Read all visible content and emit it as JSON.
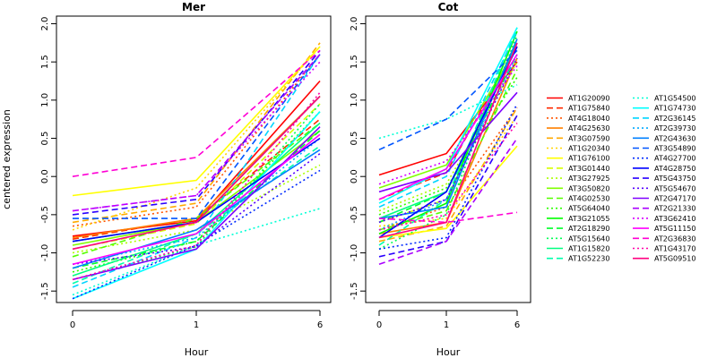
{
  "chart_data": {
    "type": "line",
    "ylabel": "centered expression",
    "xlabel": "Hour",
    "x_ticks": [
      "0",
      "1",
      "6"
    ],
    "y_ticks": [
      "-1.5",
      "-1.0",
      "-0.5",
      "0.0",
      "0.5",
      "1.0",
      "1.5",
      "2.0"
    ],
    "ylim": [
      -1.65,
      2.1
    ],
    "panels": [
      {
        "title": "Mer",
        "series": [
          {
            "name": "AT1G20090",
            "values": [
              -0.78,
              -0.58,
              1.25
            ]
          },
          {
            "name": "AT1G75840",
            "values": [
              -0.82,
              -0.55,
              0.75
            ]
          },
          {
            "name": "AT4G18040",
            "values": [
              -0.65,
              -0.4,
              1.6
            ]
          },
          {
            "name": "AT4G25630",
            "values": [
              -0.8,
              -0.55,
              1.05
            ]
          },
          {
            "name": "AT3G07590",
            "values": [
              -0.6,
              -0.35,
              1.75
            ]
          },
          {
            "name": "AT1G20340",
            "values": [
              -0.7,
              -0.15,
              1.7
            ]
          },
          {
            "name": "AT1G76100",
            "values": [
              -0.25,
              -0.05,
              1.7
            ]
          },
          {
            "name": "AT3G01440",
            "values": [
              -0.95,
              -0.62,
              0.95
            ]
          },
          {
            "name": "AT3G27925",
            "values": [
              -1.0,
              -0.7,
              0.15
            ]
          },
          {
            "name": "AT3G50820",
            "values": [
              -0.9,
              -0.6,
              0.6
            ]
          },
          {
            "name": "AT4G02530",
            "values": [
              -1.05,
              -0.55,
              0.7
            ]
          },
          {
            "name": "AT5G64040",
            "values": [
              -1.25,
              -0.85,
              0.85
            ]
          },
          {
            "name": "AT3G21055",
            "values": [
              -0.85,
              -0.6,
              1.05
            ]
          },
          {
            "name": "AT2G18290",
            "values": [
              -1.2,
              -0.85,
              0.6
            ]
          },
          {
            "name": "AT5G15640",
            "values": [
              -1.35,
              -0.92,
              0.95
            ]
          },
          {
            "name": "AT1G15820",
            "values": [
              -1.3,
              -0.75,
              0.7
            ]
          },
          {
            "name": "AT1G52230",
            "values": [
              -1.4,
              -0.75,
              0.4
            ]
          },
          {
            "name": "AT1G54500",
            "values": [
              -1.55,
              -0.9,
              -0.42
            ]
          },
          {
            "name": "AT1G74730",
            "values": [
              -1.6,
              -0.95,
              0.85
            ]
          },
          {
            "name": "AT2G36145",
            "values": [
              -1.45,
              -0.8,
              1.6
            ]
          },
          {
            "name": "AT2G39730",
            "values": [
              -1.15,
              -0.8,
              0.5
            ]
          },
          {
            "name": "AT2G43630",
            "values": [
              -1.2,
              -0.7,
              0.35
            ]
          },
          {
            "name": "AT3G54890",
            "values": [
              -0.55,
              -0.55,
              1.6
            ]
          },
          {
            "name": "AT4G27700",
            "values": [
              -1.6,
              -0.9,
              0.08
            ]
          },
          {
            "name": "AT4G28750",
            "values": [
              -0.85,
              -0.6,
              0.5
            ]
          },
          {
            "name": "AT5G43750",
            "values": [
              -0.5,
              -0.3,
              1.65
            ]
          },
          {
            "name": "AT5G54670",
            "values": [
              -1.15,
              -0.92,
              0.3
            ]
          },
          {
            "name": "AT2G47170",
            "values": [
              -1.35,
              -0.95,
              0.65
            ]
          },
          {
            "name": "AT2G21330",
            "values": [
              -0.45,
              -0.25,
              1.6
            ]
          },
          {
            "name": "AT3G62410",
            "values": [
              -0.45,
              -0.25,
              1.5
            ]
          },
          {
            "name": "AT5G11150",
            "values": [
              -1.15,
              -0.75,
              0.55
            ]
          },
          {
            "name": "AT2G36830",
            "values": [
              0.0,
              0.25,
              1.65
            ]
          },
          {
            "name": "AT1G43170",
            "values": [
              -1.35,
              -0.9,
              1.1
            ]
          },
          {
            "name": "AT5G09510",
            "values": [
              -0.95,
              -0.6,
              1.05
            ]
          }
        ]
      },
      {
        "title": "Cot",
        "series": [
          {
            "name": "AT1G20090",
            "values": [
              0.02,
              0.3,
              1.5
            ]
          },
          {
            "name": "AT1G75840",
            "values": [
              -0.3,
              0.05,
              1.7
            ]
          },
          {
            "name": "AT4G18040",
            "values": [
              -0.7,
              -0.4,
              0.9
            ]
          },
          {
            "name": "AT4G25630",
            "values": [
              -0.75,
              -0.6,
              1.55
            ]
          },
          {
            "name": "AT3G07590",
            "values": [
              -0.85,
              -0.65,
              0.9
            ]
          },
          {
            "name": "AT1G20340",
            "values": [
              -0.65,
              -0.55,
              0.8
            ]
          },
          {
            "name": "AT1G76100",
            "values": [
              -0.8,
              -0.68,
              0.4
            ]
          },
          {
            "name": "AT3G01440",
            "values": [
              -0.6,
              -0.3,
              1.8
            ]
          },
          {
            "name": "AT3G27925",
            "values": [
              -0.45,
              -0.1,
              1.5
            ]
          },
          {
            "name": "AT3G50820",
            "values": [
              -0.15,
              0.15,
              1.7
            ]
          },
          {
            "name": "AT4G02530",
            "values": [
              -0.7,
              -0.45,
              1.4
            ]
          },
          {
            "name": "AT5G64040",
            "values": [
              -0.5,
              -0.15,
              1.3
            ]
          },
          {
            "name": "AT3G21055",
            "values": [
              -0.75,
              -0.35,
              1.9
            ]
          },
          {
            "name": "AT2G18290",
            "values": [
              -0.6,
              -0.2,
              1.6
            ]
          },
          {
            "name": "AT5G15640",
            "values": [
              -0.95,
              -0.5,
              1.85
            ]
          },
          {
            "name": "AT1G15820",
            "values": [
              -0.55,
              -0.2,
              1.75
            ]
          },
          {
            "name": "AT1G52230",
            "values": [
              -0.9,
              -0.3,
              1.95
            ]
          },
          {
            "name": "AT1G54500",
            "values": [
              0.5,
              0.75,
              1.2
            ]
          },
          {
            "name": "AT1G74730",
            "values": [
              -0.35,
              0.1,
              1.95
            ]
          },
          {
            "name": "AT2G36145",
            "values": [
              -0.4,
              0.0,
              1.9
            ]
          },
          {
            "name": "AT2G39730",
            "values": [
              -0.7,
              -0.3,
              1.6
            ]
          },
          {
            "name": "AT2G43630",
            "values": [
              -0.55,
              -0.4,
              1.8
            ]
          },
          {
            "name": "AT3G54890",
            "values": [
              0.35,
              0.75,
              1.65
            ]
          },
          {
            "name": "AT4G27700",
            "values": [
              -0.95,
              -0.8,
              0.95
            ]
          },
          {
            "name": "AT4G28750",
            "values": [
              -0.8,
              -0.2,
              1.7
            ]
          },
          {
            "name": "AT5G43750",
            "values": [
              -1.05,
              -0.85,
              0.8
            ]
          },
          {
            "name": "AT5G54670",
            "values": [
              -0.6,
              -0.3,
              1.55
            ]
          },
          {
            "name": "AT2G47170",
            "values": [
              -0.2,
              0.05,
              1.1
            ]
          },
          {
            "name": "AT2G21330",
            "values": [
              -1.15,
              -0.85,
              0.5
            ]
          },
          {
            "name": "AT3G62410",
            "values": [
              -0.1,
              0.2,
              1.45
            ]
          },
          {
            "name": "AT5G11150",
            "values": [
              -0.3,
              0.1,
              1.6
            ]
          },
          {
            "name": "AT2G36830",
            "values": [
              -0.55,
              -0.6,
              -0.47
            ]
          },
          {
            "name": "AT1G43170",
            "values": [
              -0.7,
              -0.5,
              0.7
            ]
          },
          {
            "name": "AT5G09510",
            "values": [
              -0.8,
              -0.6,
              1.75
            ]
          }
        ]
      }
    ],
    "legend_position": "right",
    "grid": false
  },
  "series_style": [
    {
      "color": "#ff0000",
      "dash": "solid"
    },
    {
      "color": "#ff2a00",
      "dash": "dashed"
    },
    {
      "color": "#ff5500",
      "dash": "dotted"
    },
    {
      "color": "#ff8000",
      "dash": "solid"
    },
    {
      "color": "#ffaa00",
      "dash": "dashed"
    },
    {
      "color": "#ffd500",
      "dash": "dotted"
    },
    {
      "color": "#ffff00",
      "dash": "solid"
    },
    {
      "color": "#d5ff00",
      "dash": "dashed"
    },
    {
      "color": "#aaff00",
      "dash": "dotted"
    },
    {
      "color": "#80ff00",
      "dash": "solid"
    },
    {
      "color": "#55ff00",
      "dash": "dashed"
    },
    {
      "color": "#2aff00",
      "dash": "dotted"
    },
    {
      "color": "#00ff00",
      "dash": "solid"
    },
    {
      "color": "#00ff2a",
      "dash": "dashed"
    },
    {
      "color": "#00ff55",
      "dash": "dotted"
    },
    {
      "color": "#00ff80",
      "dash": "solid"
    },
    {
      "color": "#00ffaa",
      "dash": "dashed"
    },
    {
      "color": "#00ffd5",
      "dash": "dotted"
    },
    {
      "color": "#00ffff",
      "dash": "solid"
    },
    {
      "color": "#00d5ff",
      "dash": "dashed"
    },
    {
      "color": "#00aaff",
      "dash": "dotted"
    },
    {
      "color": "#0080ff",
      "dash": "solid"
    },
    {
      "color": "#0055ff",
      "dash": "dashed"
    },
    {
      "color": "#002aff",
      "dash": "dotted"
    },
    {
      "color": "#0000ff",
      "dash": "solid"
    },
    {
      "color": "#2a00ff",
      "dash": "dashed"
    },
    {
      "color": "#5500ff",
      "dash": "dotted"
    },
    {
      "color": "#8000ff",
      "dash": "solid"
    },
    {
      "color": "#aa00ff",
      "dash": "dashed"
    },
    {
      "color": "#d500ff",
      "dash": "dotted"
    },
    {
      "color": "#ff00ff",
      "dash": "solid"
    },
    {
      "color": "#ff00d5",
      "dash": "dashed"
    },
    {
      "color": "#ff00aa",
      "dash": "dotted"
    },
    {
      "color": "#ff0080",
      "dash": "solid"
    }
  ]
}
